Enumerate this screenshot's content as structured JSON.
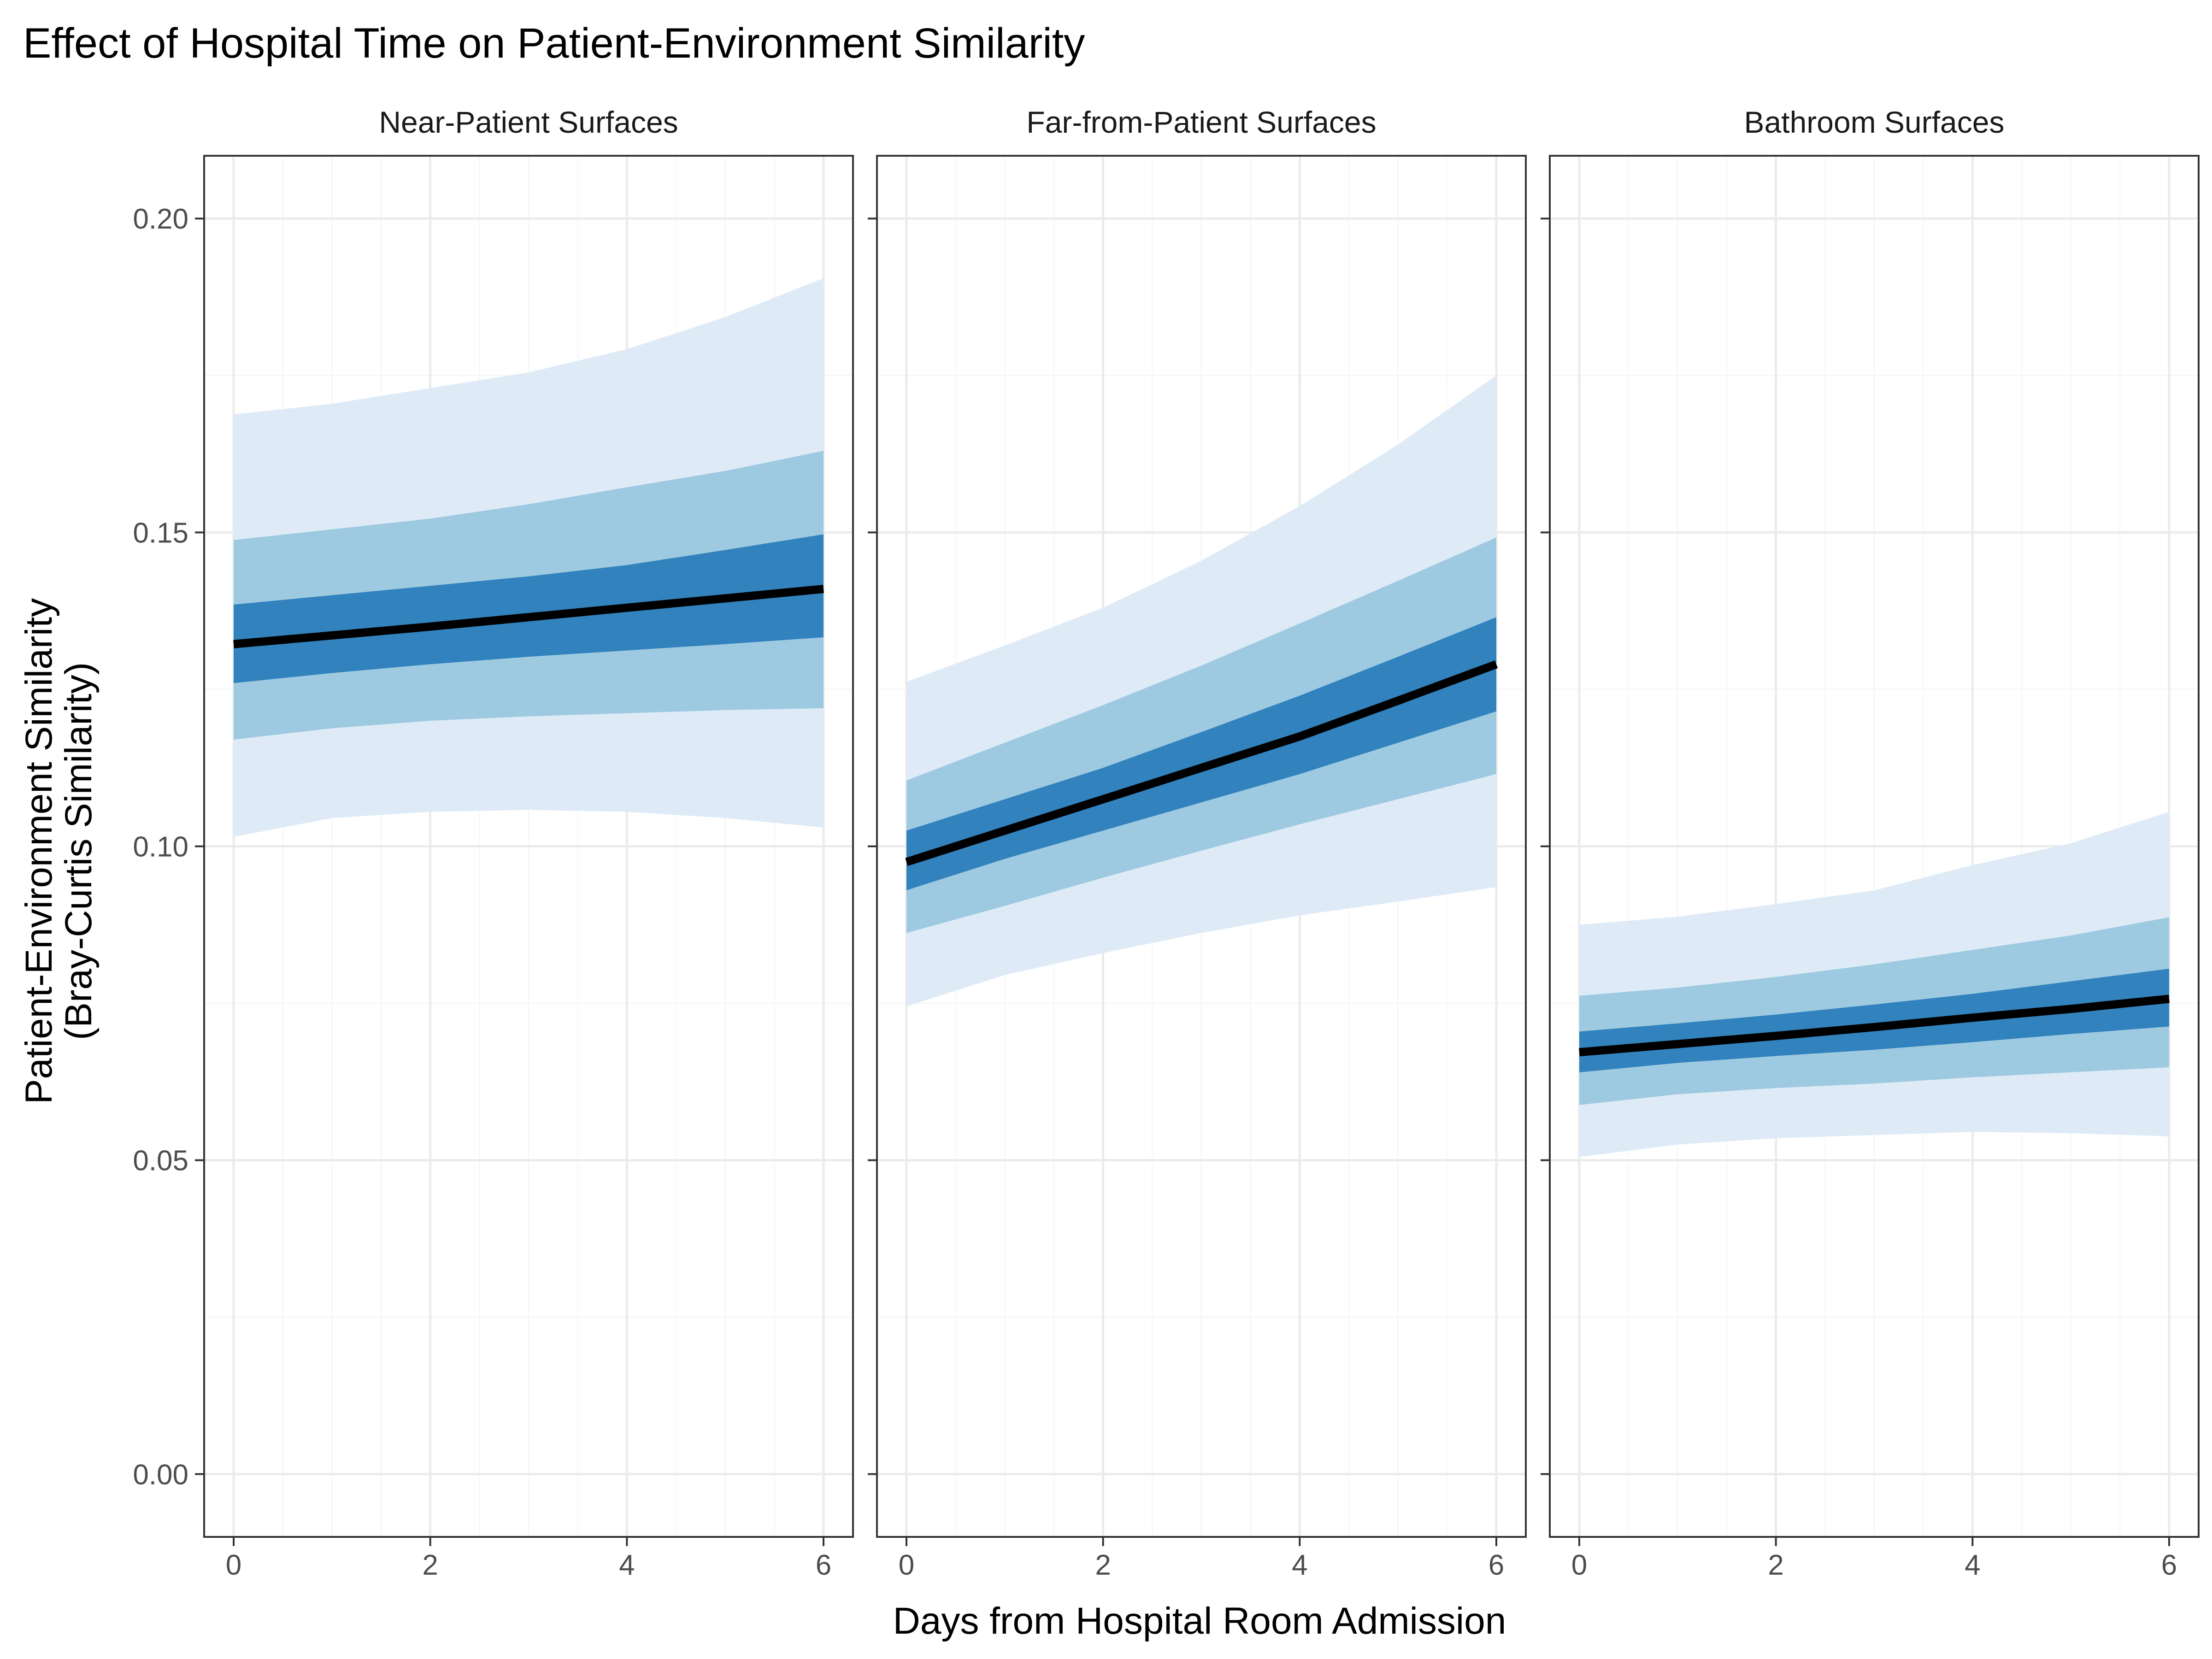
{
  "chart_data": {
    "type": "line",
    "title": "Effect of Hospital Time on Patient-Environment Similarity",
    "xlabel": "Days from Hospital Room Admission",
    "ylabel": [
      "Patient-Environment Similarity",
      "(Bray-Curtis Similarity)"
    ],
    "xlim": [
      -0.3,
      6.3
    ],
    "ylim": [
      -0.01,
      0.21
    ],
    "x_ticks": [
      0,
      2,
      4,
      6
    ],
    "x_tick_labels": [
      "0",
      "2",
      "4",
      "6"
    ],
    "y_ticks": [
      0.0,
      0.05,
      0.1,
      0.15,
      0.2
    ],
    "y_tick_labels": [
      "0.00",
      "0.05",
      "0.10",
      "0.15",
      "0.20"
    ],
    "grid": true,
    "colors": {
      "line": "#000000",
      "band_inner": "#3182bd",
      "band_middle": "#9ecae1",
      "band_outer": "#deebf7",
      "panel_border": "#333333",
      "grid_major": "#ebebeb",
      "grid_minor": "#f5f5f5"
    },
    "x": [
      0,
      1,
      2,
      3,
      4,
      5,
      6
    ],
    "facets": [
      {
        "name": "Near-Patient Surfaces",
        "fit": [
          0.1322,
          0.1336,
          0.135,
          0.1365,
          0.138,
          0.1395,
          0.141
        ],
        "inner_lower": [
          0.126,
          0.1276,
          0.129,
          0.1302,
          0.1312,
          0.1322,
          0.1333
        ],
        "inner_upper": [
          0.1385,
          0.14,
          0.1415,
          0.143,
          0.1448,
          0.1472,
          0.1497
        ],
        "middle_lower": [
          0.117,
          0.1188,
          0.12,
          0.1207,
          0.1212,
          0.1217,
          0.122
        ],
        "middle_upper": [
          0.1488,
          0.1505,
          0.1522,
          0.1545,
          0.1572,
          0.1598,
          0.163
        ],
        "outer_lower": [
          0.1015,
          0.1045,
          0.1055,
          0.1058,
          0.1055,
          0.1045,
          0.103
        ],
        "outer_upper": [
          0.1688,
          0.1705,
          0.173,
          0.1755,
          0.1792,
          0.1843,
          0.1905
        ]
      },
      {
        "name": "Far-from-Patient Surfaces",
        "fit": [
          0.0975,
          0.1025,
          0.1075,
          0.1125,
          0.1175,
          0.1232,
          0.129
        ],
        "inner_lower": [
          0.093,
          0.098,
          0.1025,
          0.107,
          0.1115,
          0.1165,
          0.1215
        ],
        "inner_upper": [
          0.1025,
          0.1075,
          0.1125,
          0.1182,
          0.124,
          0.1302,
          0.1365
        ],
        "middle_lower": [
          0.0862,
          0.0905,
          0.095,
          0.0993,
          0.1035,
          0.1075,
          0.1115
        ],
        "middle_upper": [
          0.1105,
          0.1165,
          0.1225,
          0.1288,
          0.1355,
          0.1423,
          0.1492
        ],
        "outer_lower": [
          0.0745,
          0.0795,
          0.083,
          0.0862,
          0.089,
          0.0912,
          0.0935
        ],
        "outer_upper": [
          0.1262,
          0.132,
          0.138,
          0.1455,
          0.1542,
          0.164,
          0.175
        ]
      },
      {
        "name": "Bathroom Surfaces",
        "fit": [
          0.0672,
          0.0685,
          0.0698,
          0.0712,
          0.0727,
          0.0741,
          0.0757
        ],
        "inner_lower": [
          0.064,
          0.0655,
          0.0666,
          0.0676,
          0.0688,
          0.0701,
          0.0713
        ],
        "inner_upper": [
          0.0705,
          0.0718,
          0.0732,
          0.0748,
          0.0765,
          0.0785,
          0.0805
        ],
        "middle_lower": [
          0.0588,
          0.0605,
          0.0615,
          0.0622,
          0.0632,
          0.064,
          0.0648
        ],
        "middle_upper": [
          0.0762,
          0.0775,
          0.0792,
          0.0812,
          0.0835,
          0.0858,
          0.0887
        ],
        "outer_lower": [
          0.0505,
          0.0525,
          0.0535,
          0.054,
          0.0545,
          0.0543,
          0.0538
        ],
        "outer_upper": [
          0.0875,
          0.0888,
          0.0908,
          0.093,
          0.097,
          0.1005,
          0.1055
        ]
      }
    ]
  }
}
